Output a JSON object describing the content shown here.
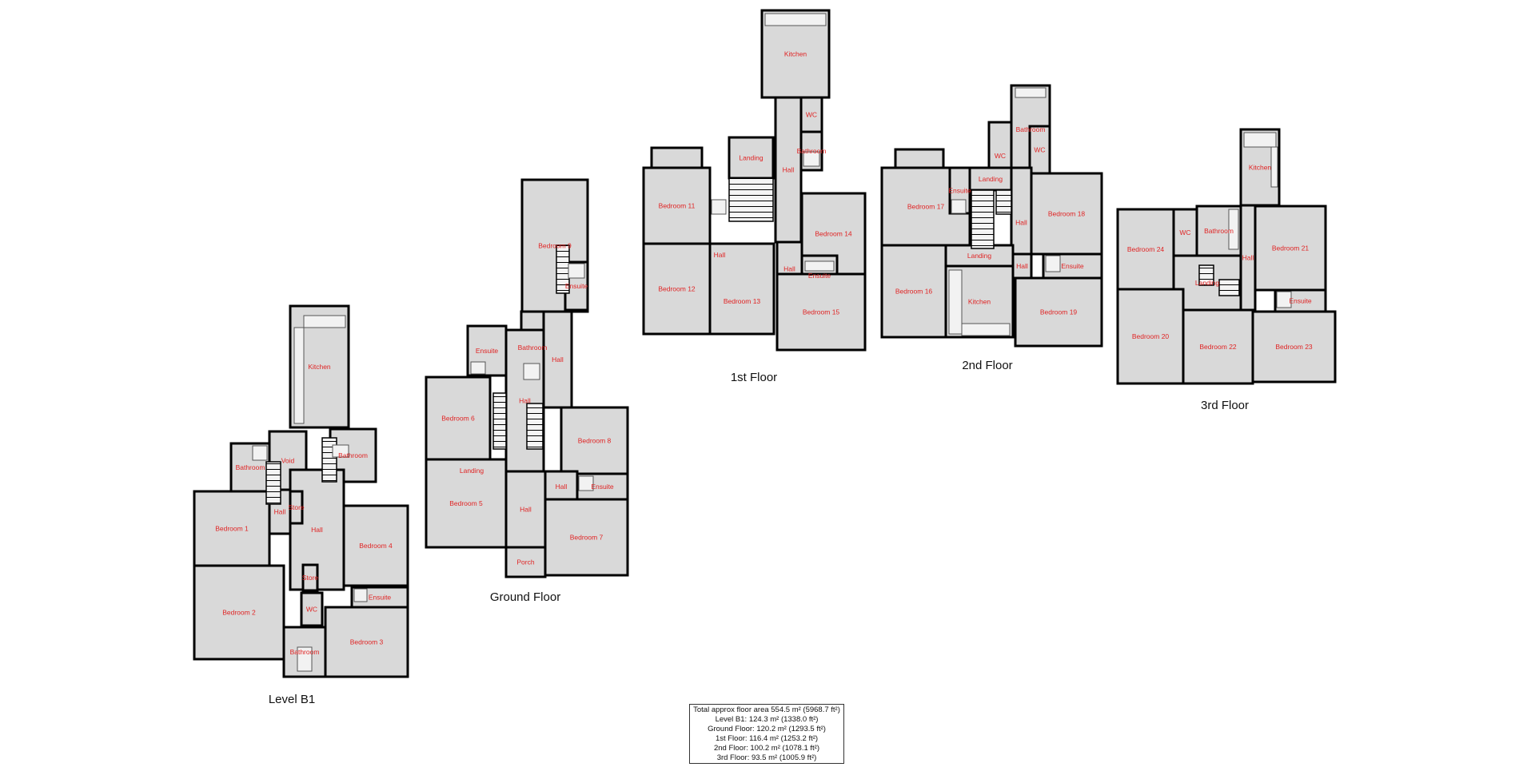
{
  "floors": {
    "b1": {
      "label": "Level B1",
      "rooms": [
        "Kitchen",
        "Bathroom",
        "Bathroom",
        "Void",
        "Bedroom 1",
        "Bedroom 2",
        "Hall",
        "Bedroom 4",
        "Ensuite",
        "Bedroom 3",
        "WC",
        "Bathroom",
        "Hall",
        "Store",
        "Store"
      ]
    },
    "ground": {
      "label": "Ground Floor",
      "rooms": [
        "Bedroom 9",
        "Ensuite",
        "Ensuite",
        "Bathroom",
        "Bedroom 6",
        "Bedroom 5",
        "Hall",
        "Hall",
        "Bedroom 8",
        "Ensuite",
        "Bedroom 7",
        "Hall",
        "Porch",
        "Landing",
        "Hall"
      ]
    },
    "first": {
      "label": "1st Floor",
      "rooms": [
        "Kitchen",
        "WC",
        "Bathroom",
        "Hall",
        "Landing",
        "Bedroom 11",
        "Bedroom 12",
        "Hall",
        "Bedroom 13",
        "Bedroom 14",
        "Hall",
        "Ensuite",
        "Bedroom 15"
      ]
    },
    "second": {
      "label": "2nd Floor",
      "rooms": [
        "Bathroom",
        "WC",
        "WC",
        "Bedroom 17",
        "Ensuite",
        "Landing",
        "Hall",
        "Bedroom 18",
        "Bedroom 16",
        "Landing",
        "Kitchen",
        "Ensuite",
        "Bedroom 19",
        "Hall"
      ]
    },
    "third": {
      "label": "3rd Floor",
      "rooms": [
        "Kitchen",
        "Bedroom 24",
        "WC",
        "Bathroom",
        "Bedroom 21",
        "Landing",
        "Hall",
        "Ensuite",
        "Bedroom 20",
        "Bedroom 22",
        "Bedroom 23"
      ]
    }
  },
  "area_summary": {
    "total": "Total approx floor area 554.5 m² (5968.7 ft²)",
    "lines": [
      "Level B1: 124.3 m² (1338.0 ft²)",
      "Ground Floor: 120.2 m² (1293.5 ft²)",
      "1st Floor: 116.4 m² (1253.2 ft²)",
      "2nd Floor: 100.2 m² (1078.1 ft²)",
      "3rd Floor: 93.5 m² (1005.9 ft²)"
    ]
  },
  "colors": {
    "wall": "#000000",
    "room_fill": "#d9d9d9",
    "room_label": "#e02424"
  }
}
